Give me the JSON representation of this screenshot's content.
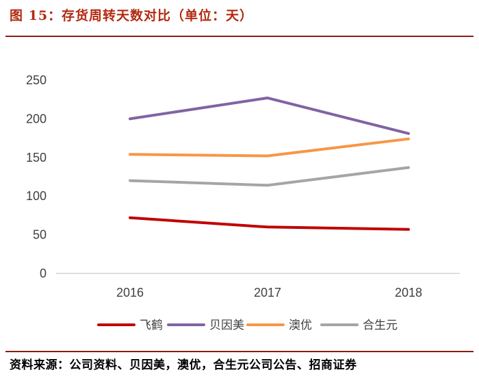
{
  "header": {
    "title": "图 15：存货周转天数对比（单位：天）"
  },
  "footer": {
    "source": "资料来源：公司资料、贝因美，澳优，合生元公司公告、招商证券"
  },
  "chart_data": {
    "type": "line",
    "title": "图 15：存货周转天数对比（单位：天）",
    "categories": [
      "2016",
      "2017",
      "2018"
    ],
    "ylim": [
      0,
      250
    ],
    "yticks": [
      0,
      50,
      100,
      150,
      200,
      250
    ],
    "grid": false,
    "legend_position": "bottom",
    "xlabel": "",
    "ylabel": "",
    "series": [
      {
        "name": "飞鹤",
        "color": "#c00000",
        "values": [
          72,
          60,
          57
        ]
      },
      {
        "name": "贝因美",
        "color": "#8064a2",
        "values": [
          200,
          227,
          181
        ]
      },
      {
        "name": "澳优",
        "color": "#f79646",
        "values": [
          154,
          152,
          174
        ]
      },
      {
        "name": "合生元",
        "color": "#a5a5a5",
        "values": [
          120,
          114,
          137
        ]
      }
    ]
  }
}
